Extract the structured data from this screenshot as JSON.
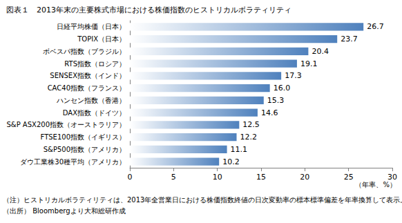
{
  "chart_data": {
    "type": "bar",
    "title": "図表１　2013年末の主要株式市場における株価指数のヒストリカルボラティリティ",
    "orientation": "horizontal",
    "categories": [
      "日経平均株価（日本）",
      "TOPIX（日本）",
      "ボベスパ指数（ブラジル）",
      "RTS指数（ロシア）",
      "SENSEX指数（インド）",
      "CAC40指数（フランス）",
      "ハンセン指数（香港）",
      "DAX指数（ドイツ）",
      "S&P ASX200指数（オーストラリア）",
      "FTSE100指数（イギリス）",
      "S&P500指数（アメリカ）",
      "ダウ工業株30種平均（アメリカ）"
    ],
    "values": [
      26.7,
      23.7,
      20.4,
      19.1,
      17.3,
      16.0,
      15.3,
      14.6,
      12.5,
      12.2,
      11.1,
      10.2
    ],
    "value_labels": [
      "26.7",
      "23.7",
      "20.4",
      "19.1",
      "17.3",
      "16.0",
      "15.3",
      "14.6",
      "12.5",
      "12.2",
      "11.1",
      "10.2"
    ],
    "color": "#4f81bd",
    "data_labels": true,
    "grid": false,
    "xlabel": "（年率、%）",
    "xlim": [
      0,
      30
    ],
    "xticks": [
      0,
      5,
      10,
      15,
      20,
      25,
      30
    ],
    "annotations": [
      "（注）ヒストリカルボラティリティは、2013年全営業日における株価指数終値の日次変動率の標本標準偏差を年率換算して表示。",
      "（出所） Bloombergより大和総研作成"
    ]
  }
}
